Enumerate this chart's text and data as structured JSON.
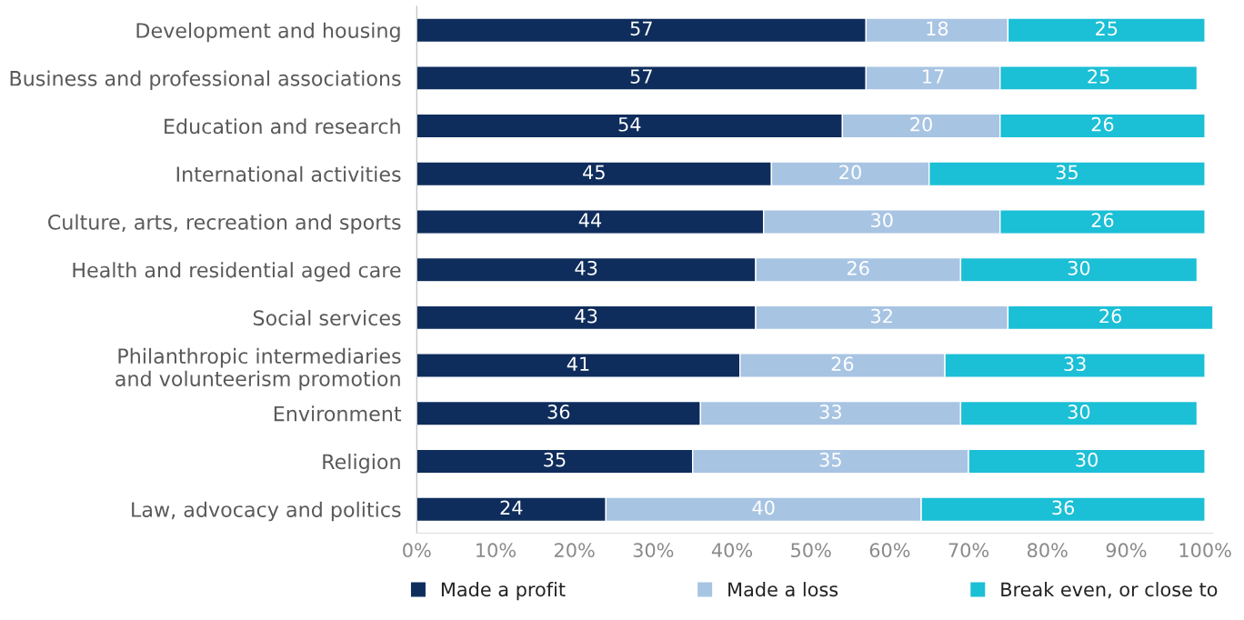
{
  "chart_data": {
    "type": "bar",
    "orientation": "horizontal",
    "stacked": true,
    "data_labels": true,
    "grid": false,
    "legend": "bottom",
    "categories": [
      "Development and housing",
      "Business and professional associations",
      "Education and research",
      "International activities",
      "Culture, arts, recreation and sports",
      "Health and residential aged care",
      "Social services",
      "Philanthropic intermediaries\nand volunteerism promotion",
      "Environment",
      "Religion",
      "Law, advocacy and politics"
    ],
    "series": [
      {
        "name": "Made a profit",
        "color": "#0f2d5c",
        "values": [
          57,
          57,
          54,
          45,
          44,
          43,
          43,
          41,
          36,
          35,
          24
        ]
      },
      {
        "name": "Made a loss",
        "color": "#a8c4e3",
        "values": [
          18,
          17,
          20,
          20,
          30,
          26,
          32,
          26,
          33,
          35,
          40
        ]
      },
      {
        "name": "Break even, or close to",
        "color": "#1bbfd6",
        "values": [
          25,
          25,
          26,
          35,
          26,
          30,
          26,
          33,
          30,
          30,
          36
        ]
      }
    ],
    "xlim": [
      0,
      101
    ],
    "xticks": [
      {
        "value": 0,
        "label": "0%"
      },
      {
        "value": 10,
        "label": "10%"
      },
      {
        "value": 20,
        "label": "20%"
      },
      {
        "value": 30,
        "label": "30%"
      },
      {
        "value": 40,
        "label": "40%"
      },
      {
        "value": 50,
        "label": "50%"
      },
      {
        "value": 60,
        "label": "60%"
      },
      {
        "value": 70,
        "label": "70%"
      },
      {
        "value": 80,
        "label": "80%"
      },
      {
        "value": 90,
        "label": "90%"
      },
      {
        "value": 100,
        "label": "100%"
      }
    ]
  }
}
